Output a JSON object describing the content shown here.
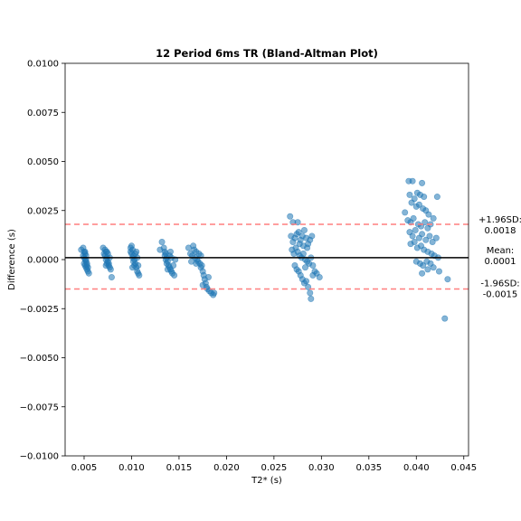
{
  "chart_data": {
    "type": "scatter",
    "title": "12 Period 6ms TR (Bland-Altman Plot)",
    "xlabel": "T2* (s)",
    "ylabel": "Difference (s)",
    "xlim": [
      0.003,
      0.0455
    ],
    "ylim": [
      -0.01,
      0.01
    ],
    "xticks": [
      0.005,
      0.01,
      0.015,
      0.02,
      0.025,
      0.03,
      0.035,
      0.04,
      0.045
    ],
    "xtick_labels": [
      "0.005",
      "0.010",
      "0.015",
      "0.020",
      "0.025",
      "0.030",
      "0.035",
      "0.040",
      "0.045"
    ],
    "yticks": [
      -0.01,
      -0.0075,
      -0.005,
      -0.0025,
      0.0,
      0.0025,
      0.005,
      0.0075,
      0.01
    ],
    "ytick_labels": [
      "−0.0100",
      "−0.0075",
      "−0.0050",
      "−0.0025",
      "0.0000",
      "0.0025",
      "0.0050",
      "0.0075",
      "0.0100"
    ],
    "grid": false,
    "mean": 0.0001,
    "upper_loa": 0.0018,
    "lower_loa": -0.0015,
    "annotations": {
      "upper_label": "+1.96SD:",
      "upper_value": "0.0018",
      "mean_label": "Mean:",
      "mean_value": "0.0001",
      "lower_label": "-1.96SD:",
      "lower_value": "-0.0015"
    },
    "colors": {
      "points": "#1f77b4",
      "mean_line": "#000000",
      "loa_line": "#ff7f7f"
    },
    "points": [
      [
        0.0047,
        0.0005
      ],
      [
        0.0049,
        0.0006
      ],
      [
        0.005,
        0.0004
      ],
      [
        0.0051,
        0.0003
      ],
      [
        0.0049,
        0.0002
      ],
      [
        0.005,
        0.0001
      ],
      [
        0.0051,
        0.0
      ],
      [
        0.0052,
        -0.0001
      ],
      [
        0.005,
        -0.0002
      ],
      [
        0.0051,
        -0.0003
      ],
      [
        0.0052,
        -0.0004
      ],
      [
        0.0053,
        -0.0005
      ],
      [
        0.0054,
        -0.0006
      ],
      [
        0.0055,
        -0.0007
      ],
      [
        0.0053,
        -0.0002
      ],
      [
        0.0052,
        0.0002
      ],
      [
        0.0051,
        0.0004
      ],
      [
        0.0053,
        -0.0003
      ],
      [
        0.0054,
        -0.0004
      ],
      [
        0.0052,
        0.0
      ],
      [
        0.007,
        0.0006
      ],
      [
        0.0072,
        0.0005
      ],
      [
        0.0073,
        0.0004
      ],
      [
        0.0071,
        0.0003
      ],
      [
        0.0072,
        0.0002
      ],
      [
        0.0074,
        0.0001
      ],
      [
        0.0073,
        0.0
      ],
      [
        0.0075,
        -0.0001
      ],
      [
        0.0074,
        -0.0002
      ],
      [
        0.0076,
        -0.0003
      ],
      [
        0.0077,
        -0.0004
      ],
      [
        0.0078,
        -0.0005
      ],
      [
        0.0079,
        -0.0009
      ],
      [
        0.0075,
        0.0003
      ],
      [
        0.0076,
        -0.0002
      ],
      [
        0.0074,
        0.0004
      ],
      [
        0.0073,
        -0.0003
      ],
      [
        0.0077,
        0.0001
      ],
      [
        0.0099,
        0.0006
      ],
      [
        0.01,
        0.0007
      ],
      [
        0.0101,
        0.0005
      ],
      [
        0.0099,
        0.0004
      ],
      [
        0.01,
        0.0003
      ],
      [
        0.0102,
        0.0002
      ],
      [
        0.0101,
        0.0001
      ],
      [
        0.0103,
        0.0
      ],
      [
        0.0102,
        -0.0001
      ],
      [
        0.0104,
        -0.0002
      ],
      [
        0.0103,
        -0.0003
      ],
      [
        0.0105,
        -0.0004
      ],
      [
        0.0106,
        -0.0006
      ],
      [
        0.0107,
        -0.0007
      ],
      [
        0.0108,
        -0.0008
      ],
      [
        0.0104,
        0.0003
      ],
      [
        0.0101,
        -0.0004
      ],
      [
        0.0106,
        0.0001
      ],
      [
        0.0107,
        -0.0003
      ],
      [
        0.0105,
        0.0004
      ],
      [
        0.013,
        0.0005
      ],
      [
        0.0132,
        0.0009
      ],
      [
        0.0134,
        0.0006
      ],
      [
        0.0135,
        0.0004
      ],
      [
        0.0136,
        0.0003
      ],
      [
        0.0135,
        0.0002
      ],
      [
        0.0137,
        0.0001
      ],
      [
        0.0136,
        0.0
      ],
      [
        0.0138,
        -0.0001
      ],
      [
        0.0137,
        -0.0002
      ],
      [
        0.0139,
        -0.0003
      ],
      [
        0.014,
        -0.0004
      ],
      [
        0.0141,
        -0.0005
      ],
      [
        0.0142,
        -0.0006
      ],
      [
        0.0143,
        -0.0007
      ],
      [
        0.0145,
        -0.0008
      ],
      [
        0.014,
        0.0002
      ],
      [
        0.0138,
        -0.0005
      ],
      [
        0.0142,
        0.0001
      ],
      [
        0.0144,
        -0.0003
      ],
      [
        0.0146,
        0.0
      ],
      [
        0.0141,
        0.0004
      ],
      [
        0.016,
        0.0006
      ],
      [
        0.0162,
        0.0003
      ],
      [
        0.0165,
        0.0007
      ],
      [
        0.0166,
        0.0005
      ],
      [
        0.0164,
        0.0002
      ],
      [
        0.0167,
        0.0001
      ],
      [
        0.0168,
        0.0004
      ],
      [
        0.0169,
        0.0
      ],
      [
        0.017,
        -0.0001
      ],
      [
        0.0171,
        0.0003
      ],
      [
        0.0172,
        -0.0002
      ],
      [
        0.0173,
        -0.0004
      ],
      [
        0.0174,
        -0.0003
      ],
      [
        0.0175,
        -0.0006
      ],
      [
        0.0176,
        -0.0008
      ],
      [
        0.0177,
        -0.001
      ],
      [
        0.0178,
        -0.0012
      ],
      [
        0.0179,
        -0.0014
      ],
      [
        0.018,
        -0.0015
      ],
      [
        0.0182,
        -0.0016
      ],
      [
        0.0184,
        -0.0017
      ],
      [
        0.0186,
        -0.0018
      ],
      [
        0.0187,
        -0.0017
      ],
      [
        0.0175,
        -0.0013
      ],
      [
        0.0181,
        -0.0009
      ],
      [
        0.0173,
        0.0002
      ],
      [
        0.0168,
        -0.0002
      ],
      [
        0.0163,
        -0.0001
      ],
      [
        0.0267,
        0.0022
      ],
      [
        0.027,
        0.0019
      ],
      [
        0.0275,
        0.0019
      ],
      [
        0.0268,
        0.0012
      ],
      [
        0.027,
        0.0009
      ],
      [
        0.0272,
        0.0011
      ],
      [
        0.0274,
        0.0013
      ],
      [
        0.0276,
        0.0014
      ],
      [
        0.0278,
        0.001
      ],
      [
        0.028,
        0.0012
      ],
      [
        0.0282,
        0.0015
      ],
      [
        0.0284,
        0.0011
      ],
      [
        0.0286,
        0.0008
      ],
      [
        0.0288,
        0.001
      ],
      [
        0.029,
        0.0012
      ],
      [
        0.0269,
        0.0005
      ],
      [
        0.0271,
        0.0003
      ],
      [
        0.0273,
        0.0006
      ],
      [
        0.0275,
        0.0004
      ],
      [
        0.0277,
        0.0002
      ],
      [
        0.0279,
        0.0001
      ],
      [
        0.0281,
        0.0003
      ],
      [
        0.0283,
        0.0
      ],
      [
        0.0285,
        -0.0001
      ],
      [
        0.0287,
        -0.0002
      ],
      [
        0.0289,
        0.0001
      ],
      [
        0.0291,
        -0.0003
      ],
      [
        0.0293,
        -0.0006
      ],
      [
        0.0295,
        -0.0007
      ],
      [
        0.0298,
        -0.0009
      ],
      [
        0.0272,
        -0.0003
      ],
      [
        0.0274,
        -0.0005
      ],
      [
        0.0276,
        -0.0006
      ],
      [
        0.0278,
        -0.0008
      ],
      [
        0.028,
        -0.001
      ],
      [
        0.0282,
        -0.0012
      ],
      [
        0.0284,
        -0.0011
      ],
      [
        0.0286,
        -0.0014
      ],
      [
        0.0288,
        -0.0017
      ],
      [
        0.0289,
        -0.002
      ],
      [
        0.0291,
        -0.0008
      ],
      [
        0.0285,
        0.0006
      ],
      [
        0.0281,
        0.0007
      ],
      [
        0.0277,
        0.0008
      ],
      [
        0.0283,
        -0.0004
      ],
      [
        0.0388,
        0.0024
      ],
      [
        0.0392,
        0.004
      ],
      [
        0.0396,
        0.004
      ],
      [
        0.0406,
        0.0039
      ],
      [
        0.0393,
        0.0033
      ],
      [
        0.0398,
        0.0031
      ],
      [
        0.0401,
        0.0034
      ],
      [
        0.0404,
        0.0033
      ],
      [
        0.0408,
        0.0032
      ],
      [
        0.0395,
        0.0029
      ],
      [
        0.04,
        0.0027
      ],
      [
        0.0403,
        0.0028
      ],
      [
        0.0407,
        0.0026
      ],
      [
        0.041,
        0.0025
      ],
      [
        0.0413,
        0.0023
      ],
      [
        0.0418,
        0.0021
      ],
      [
        0.0422,
        0.0032
      ],
      [
        0.0391,
        0.002
      ],
      [
        0.0394,
        0.0019
      ],
      [
        0.0397,
        0.0021
      ],
      [
        0.0402,
        0.0018
      ],
      [
        0.0405,
        0.0017
      ],
      [
        0.0409,
        0.0019
      ],
      [
        0.0412,
        0.0016
      ],
      [
        0.0415,
        0.0018
      ],
      [
        0.0393,
        0.0014
      ],
      [
        0.0396,
        0.0012
      ],
      [
        0.0399,
        0.0015
      ],
      [
        0.0403,
        0.0011
      ],
      [
        0.0406,
        0.0013
      ],
      [
        0.041,
        0.001
      ],
      [
        0.0414,
        0.0012
      ],
      [
        0.0417,
        0.0009
      ],
      [
        0.0421,
        0.0011
      ],
      [
        0.0394,
        0.0008
      ],
      [
        0.0398,
        0.0009
      ],
      [
        0.0401,
        0.0006
      ],
      [
        0.0405,
        0.0007
      ],
      [
        0.0408,
        0.0005
      ],
      [
        0.0412,
        0.0004
      ],
      [
        0.0416,
        0.0003
      ],
      [
        0.0419,
        0.0002
      ],
      [
        0.0423,
        0.0001
      ],
      [
        0.04,
        -0.0001
      ],
      [
        0.0404,
        -0.0002
      ],
      [
        0.0407,
        -0.0003
      ],
      [
        0.0411,
        -0.0001
      ],
      [
        0.0415,
        -0.0002
      ],
      [
        0.0418,
        -0.0004
      ],
      [
        0.0406,
        -0.0007
      ],
      [
        0.0412,
        -0.0005
      ],
      [
        0.0424,
        -0.0006
      ],
      [
        0.0433,
        -0.001
      ],
      [
        0.043,
        -0.003
      ]
    ]
  }
}
